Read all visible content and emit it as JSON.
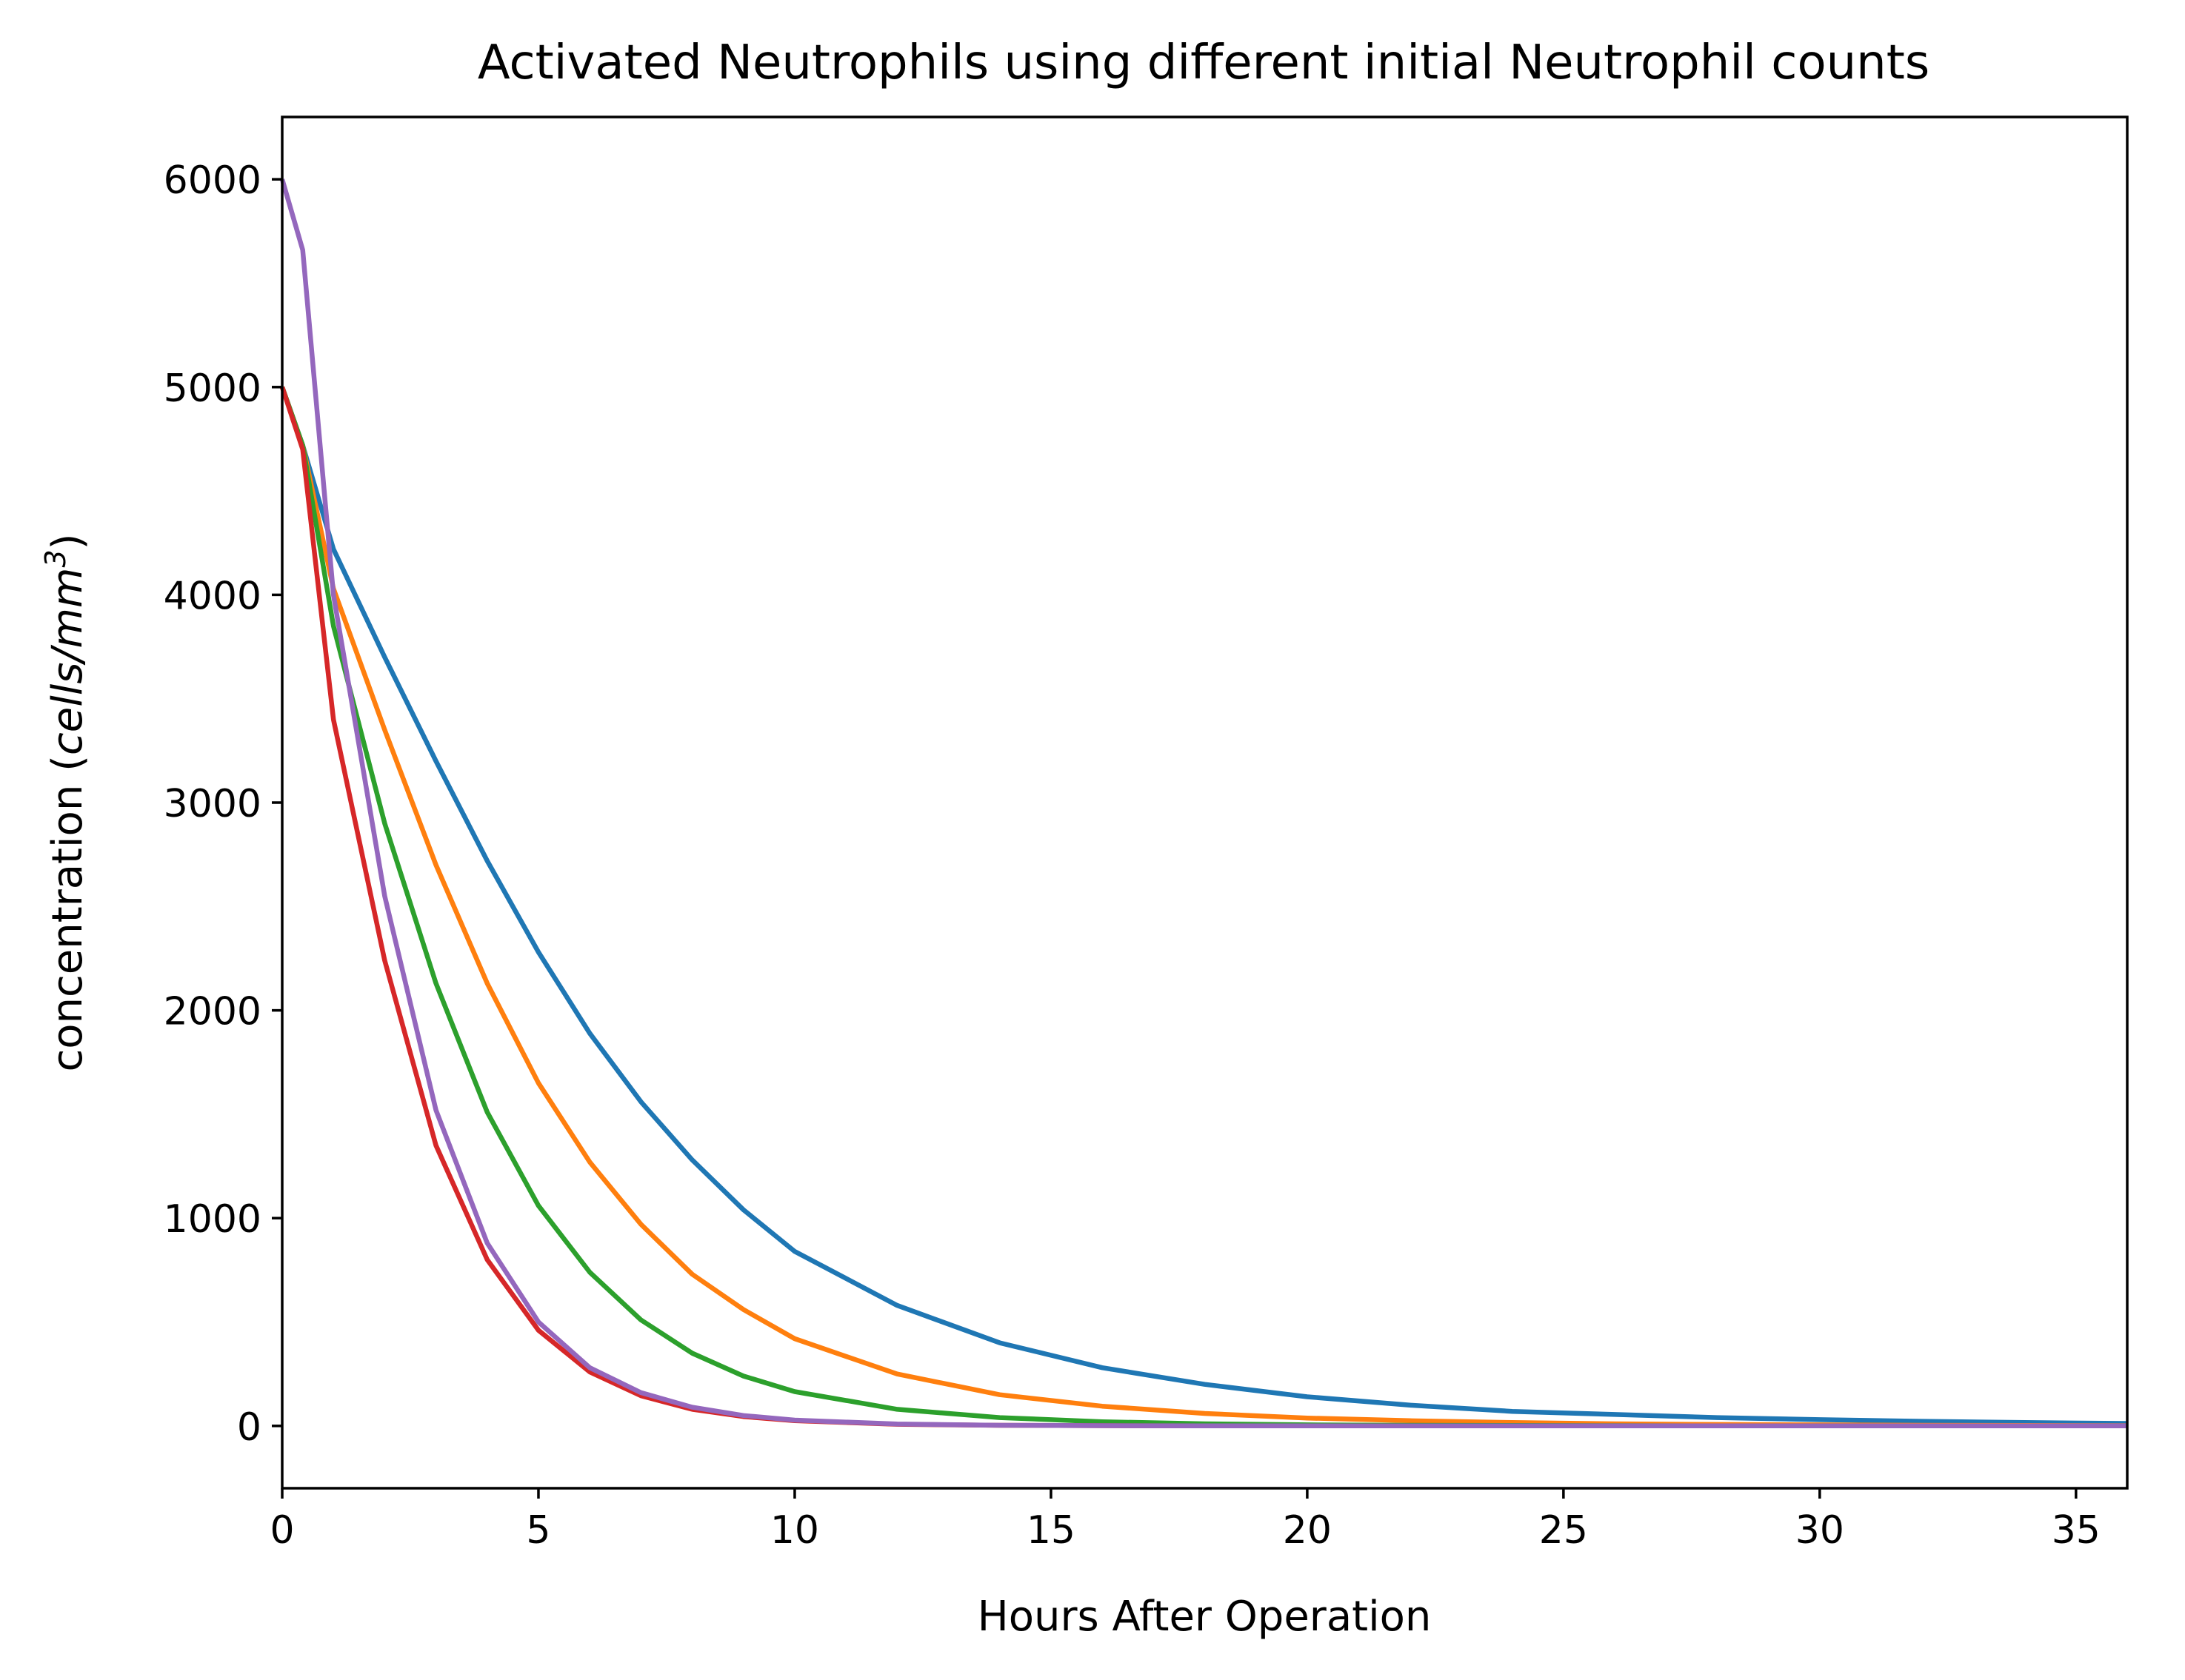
{
  "chart_data": {
    "type": "line",
    "title": "Activated Neutrophils using different initial Neutrophil counts",
    "xlabel": "Hours After Operation",
    "ylabel": {
      "prefix": "concentration (",
      "unit": "cells/mm",
      "exponent": "3",
      "suffix": ")"
    },
    "xlim": [
      0,
      36
    ],
    "ylim": [
      -300,
      6300
    ],
    "xticks": [
      0,
      5,
      10,
      15,
      20,
      25,
      30,
      35
    ],
    "yticks": [
      0,
      1000,
      2000,
      3000,
      4000,
      5000,
      6000
    ],
    "grid": false,
    "legend": "none",
    "x": [
      0,
      0.4,
      1,
      2,
      3,
      4,
      5,
      6,
      7,
      8,
      9,
      10,
      12,
      14,
      16,
      18,
      20,
      22,
      24,
      26,
      28,
      30,
      32,
      34,
      36
    ],
    "series": [
      {
        "color": "#1f77b4",
        "values": [
          5000,
          4720,
          4220,
          3700,
          3200,
          2720,
          2280,
          1890,
          1560,
          1280,
          1040,
          840,
          580,
          400,
          280,
          200,
          140,
          100,
          70,
          55,
          40,
          30,
          22,
          16,
          12
        ]
      },
      {
        "color": "#ff7f0e",
        "values": [
          5000,
          4720,
          4030,
          3350,
          2700,
          2130,
          1650,
          1270,
          970,
          730,
          560,
          420,
          250,
          150,
          95,
          60,
          38,
          25,
          16,
          10,
          7,
          5,
          3,
          2,
          1
        ]
      },
      {
        "color": "#2ca02c",
        "values": [
          5000,
          4720,
          3850,
          2900,
          2130,
          1510,
          1060,
          740,
          510,
          350,
          240,
          165,
          80,
          40,
          20,
          10,
          5,
          3,
          2,
          1,
          0,
          0,
          0,
          0,
          0
        ]
      },
      {
        "color": "#d62728",
        "values": [
          5000,
          4700,
          3400,
          2240,
          1350,
          800,
          460,
          260,
          145,
          80,
          45,
          25,
          8,
          3,
          1,
          0,
          0,
          0,
          0,
          0,
          0,
          0,
          0,
          0,
          0
        ]
      },
      {
        "color": "#9467bd",
        "values": [
          6000,
          5660,
          4000,
          2550,
          1520,
          880,
          500,
          280,
          160,
          90,
          50,
          28,
          9,
          3,
          1,
          0,
          0,
          0,
          0,
          0,
          0,
          0,
          0,
          0,
          0
        ]
      }
    ]
  }
}
